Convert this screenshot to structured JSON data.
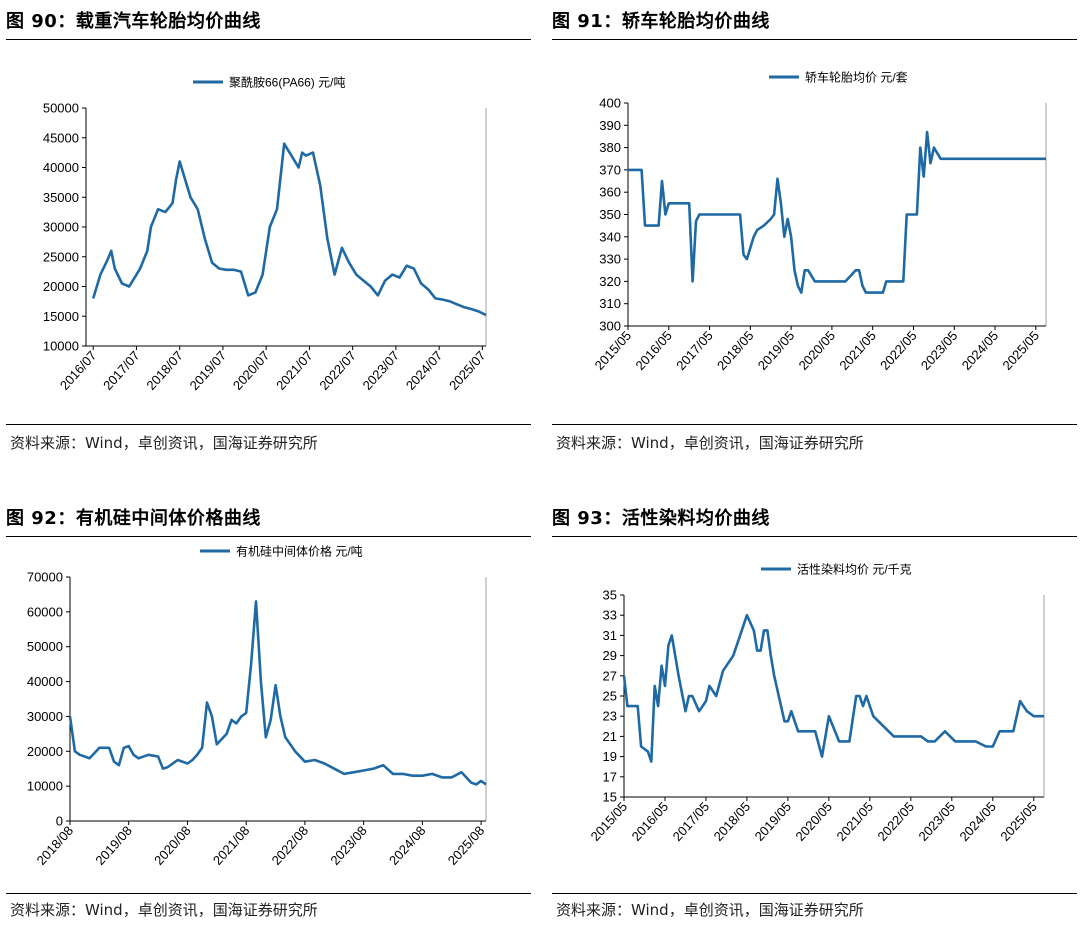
{
  "source_text": "资料来源：Wind，卓创资讯，国海证券研究所",
  "colors": {
    "line": "#1f6aa5",
    "axis": "#000000",
    "rule": "#000000"
  },
  "chart_data": [
    {
      "figure_title": "图 90：载重汽车轮胎均价曲线",
      "type": "line",
      "legend": "聚酰胺66(PA66) 元/吨",
      "ylim": [
        10000,
        50000
      ],
      "yticks": [
        10000,
        15000,
        20000,
        25000,
        30000,
        35000,
        40000,
        45000,
        50000
      ],
      "xlim": [
        "2016-05",
        "2025-08"
      ],
      "xticks": [
        "2016/07",
        "2017/07",
        "2018/07",
        "2019/07",
        "2020/07",
        "2021/07",
        "2022/07",
        "2023/07",
        "2024/07",
        "2025/07"
      ],
      "xtick_dates": [
        "2016-07",
        "2017-07",
        "2018-07",
        "2019-07",
        "2020-07",
        "2021-07",
        "2022-07",
        "2023-07",
        "2024-07",
        "2025-07"
      ],
      "series": [
        {
          "x": [
            "2016-07",
            "2016-09",
            "2016-11",
            "2016-12",
            "2017-01",
            "2017-03",
            "2017-05",
            "2017-07",
            "2017-08",
            "2017-10",
            "2017-11",
            "2018-01",
            "2018-03",
            "2018-05",
            "2018-06",
            "2018-07",
            "2018-08",
            "2018-10",
            "2018-12",
            "2019-02",
            "2019-04",
            "2019-06",
            "2019-08",
            "2019-10",
            "2019-12",
            "2020-02",
            "2020-04",
            "2020-06",
            "2020-08",
            "2020-10",
            "2020-12",
            "2021-01",
            "2021-02",
            "2021-04",
            "2021-05",
            "2021-06",
            "2021-08",
            "2021-10",
            "2021-12",
            "2022-02",
            "2022-04",
            "2022-06",
            "2022-08",
            "2022-10",
            "2022-12",
            "2023-02",
            "2023-04",
            "2023-06",
            "2023-08",
            "2023-10",
            "2023-12",
            "2024-02",
            "2024-04",
            "2024-06",
            "2024-08",
            "2024-10",
            "2024-12",
            "2025-02",
            "2025-04",
            "2025-06",
            "2025-08"
          ],
          "y": [
            18000,
            22000,
            24500,
            26000,
            23000,
            20500,
            20000,
            22000,
            23000,
            26000,
            30000,
            33000,
            32500,
            34000,
            38000,
            41000,
            39000,
            35000,
            33000,
            28000,
            24000,
            23000,
            22800,
            22800,
            22500,
            18500,
            19000,
            22000,
            30000,
            33000,
            44000,
            43000,
            42000,
            40000,
            42500,
            42000,
            42500,
            37000,
            28000,
            22000,
            26500,
            24000,
            22000,
            21000,
            20000,
            18500,
            21000,
            22000,
            21500,
            23500,
            23000,
            20500,
            19500,
            18000,
            17800,
            17500,
            17000,
            16500,
            16200,
            15800,
            15200
          ]
        }
      ]
    },
    {
      "figure_title": "图 91：轿车轮胎均价曲线",
      "type": "line",
      "legend": "轿车轮胎均价 元/套",
      "ylim": [
        300,
        400
      ],
      "yticks": [
        300,
        310,
        320,
        330,
        340,
        350,
        360,
        370,
        380,
        390,
        400
      ],
      "xlim": [
        "2015-05",
        "2025-08"
      ],
      "xticks": [
        "2015/05",
        "2016/05",
        "2017/05",
        "2018/05",
        "2019/05",
        "2020/05",
        "2021/05",
        "2022/05",
        "2023/05",
        "2024/05",
        "2025/05"
      ],
      "xtick_dates": [
        "2015-05",
        "2016-05",
        "2017-05",
        "2018-05",
        "2019-05",
        "2020-05",
        "2021-05",
        "2022-05",
        "2023-05",
        "2024-05",
        "2025-05"
      ],
      "series": [
        {
          "x": [
            "2015-05",
            "2015-09",
            "2015-10",
            "2016-02",
            "2016-03",
            "2016-04",
            "2016-05",
            "2016-08",
            "2016-11",
            "2016-12",
            "2017-01",
            "2017-02",
            "2017-03",
            "2017-06",
            "2017-09",
            "2017-12",
            "2018-02",
            "2018-03",
            "2018-04",
            "2018-05",
            "2018-06",
            "2018-07",
            "2018-09",
            "2018-11",
            "2018-12",
            "2019-01",
            "2019-02",
            "2019-03",
            "2019-04",
            "2019-05",
            "2019-06",
            "2019-07",
            "2019-08",
            "2019-09",
            "2019-10",
            "2019-12",
            "2020-03",
            "2020-06",
            "2020-09",
            "2020-12",
            "2021-01",
            "2021-02",
            "2021-03",
            "2021-06",
            "2021-08",
            "2021-09",
            "2021-12",
            "2022-02",
            "2022-03",
            "2022-04",
            "2022-06",
            "2022-07",
            "2022-08",
            "2022-09",
            "2022-10",
            "2022-11",
            "2023-01",
            "2023-06",
            "2024-01",
            "2024-06",
            "2025-01",
            "2025-08"
          ],
          "y": [
            370,
            370,
            345,
            345,
            365,
            350,
            355,
            355,
            355,
            320,
            347,
            350,
            350,
            350,
            350,
            350,
            350,
            332,
            330,
            335,
            340,
            343,
            345,
            348,
            350,
            366,
            355,
            340,
            348,
            340,
            325,
            318,
            315,
            325,
            325,
            320,
            320,
            320,
            320,
            325,
            325,
            318,
            315,
            315,
            315,
            320,
            320,
            320,
            350,
            350,
            350,
            380,
            367,
            387,
            373,
            380,
            375,
            375,
            375,
            375,
            375,
            375
          ]
        }
      ]
    },
    {
      "figure_title": "图 92：有机硅中间体价格曲线",
      "type": "line",
      "legend": "有机硅中间体价格 元/吨",
      "ylim": [
        0,
        70000
      ],
      "yticks": [
        0,
        10000,
        20000,
        30000,
        40000,
        50000,
        60000,
        70000
      ],
      "xlim": [
        "2018-08",
        "2025-09"
      ],
      "xticks": [
        "2018/08",
        "2019/08",
        "2020/08",
        "2021/08",
        "2022/08",
        "2023/08",
        "2024/08",
        "2025/08"
      ],
      "xtick_dates": [
        "2018-08",
        "2019-08",
        "2020-08",
        "2021-08",
        "2022-08",
        "2023-08",
        "2024-08",
        "2025-08"
      ],
      "series": [
        {
          "x": [
            "2018-08",
            "2018-09",
            "2018-10",
            "2018-12",
            "2019-02",
            "2019-04",
            "2019-05",
            "2019-06",
            "2019-07",
            "2019-08",
            "2019-09",
            "2019-10",
            "2019-12",
            "2020-02",
            "2020-03",
            "2020-04",
            "2020-06",
            "2020-08",
            "2020-09",
            "2020-10",
            "2020-11",
            "2020-12",
            "2021-01",
            "2021-02",
            "2021-04",
            "2021-05",
            "2021-06",
            "2021-07",
            "2021-08",
            "2021-09",
            "2021-10",
            "2021-11",
            "2021-12",
            "2022-01",
            "2022-02",
            "2022-03",
            "2022-04",
            "2022-06",
            "2022-08",
            "2022-10",
            "2022-12",
            "2023-02",
            "2023-04",
            "2023-06",
            "2023-08",
            "2023-10",
            "2023-12",
            "2024-02",
            "2024-04",
            "2024-06",
            "2024-08",
            "2024-10",
            "2024-12",
            "2025-02",
            "2025-04",
            "2025-06",
            "2025-07",
            "2025-08",
            "2025-09"
          ],
          "y": [
            30000,
            20000,
            19000,
            18000,
            21000,
            21000,
            17000,
            16000,
            21000,
            21500,
            19000,
            18000,
            19000,
            18500,
            15000,
            15500,
            17500,
            16500,
            17500,
            19000,
            21000,
            34000,
            30000,
            22000,
            25000,
            29000,
            28000,
            30000,
            31000,
            45000,
            63000,
            40000,
            24000,
            29000,
            39000,
            30000,
            24000,
            20000,
            17000,
            17500,
            16500,
            15000,
            13500,
            14000,
            14500,
            15000,
            16000,
            13500,
            13500,
            13000,
            13000,
            13500,
            12500,
            12500,
            14000,
            11000,
            10500,
            11500,
            10500
          ]
        }
      ]
    },
    {
      "figure_title": "图 93：活性染料均价曲线",
      "type": "line",
      "legend": "活性染料均价 元/千克",
      "ylim": [
        15,
        35
      ],
      "yticks": [
        15,
        17,
        19,
        21,
        23,
        25,
        27,
        29,
        31,
        33,
        35
      ],
      "xlim": [
        "2015-05",
        "2025-08"
      ],
      "xticks": [
        "2015/05",
        "2016/05",
        "2017/05",
        "2018/05",
        "2019/05",
        "2020/05",
        "2021/05",
        "2022/05",
        "2023/05",
        "2024/05",
        "2025/05"
      ],
      "xtick_dates": [
        "2015-05",
        "2016-05",
        "2017-05",
        "2018-05",
        "2019-05",
        "2020-05",
        "2021-05",
        "2022-05",
        "2023-05",
        "2024-05",
        "2025-05"
      ],
      "series": [
        {
          "x": [
            "2015-05",
            "2015-06",
            "2015-09",
            "2015-10",
            "2015-12",
            "2016-01",
            "2016-02",
            "2016-03",
            "2016-04",
            "2016-05",
            "2016-06",
            "2016-07",
            "2016-09",
            "2016-11",
            "2016-12",
            "2017-01",
            "2017-03",
            "2017-05",
            "2017-06",
            "2017-08",
            "2017-10",
            "2018-01",
            "2018-03",
            "2018-05",
            "2018-07",
            "2018-08",
            "2018-09",
            "2018-10",
            "2018-11",
            "2018-12",
            "2019-01",
            "2019-04",
            "2019-05",
            "2019-06",
            "2019-08",
            "2019-09",
            "2019-11",
            "2020-01",
            "2020-03",
            "2020-05",
            "2020-08",
            "2020-11",
            "2021-01",
            "2021-02",
            "2021-03",
            "2021-04",
            "2021-06",
            "2021-09",
            "2021-12",
            "2022-03",
            "2022-06",
            "2022-08",
            "2022-10",
            "2022-12",
            "2023-03",
            "2023-06",
            "2023-08",
            "2023-12",
            "2024-03",
            "2024-05",
            "2024-07",
            "2024-09",
            "2024-11",
            "2025-01",
            "2025-03",
            "2025-05",
            "2025-08"
          ],
          "y": [
            27,
            24,
            24,
            20,
            19.5,
            18.5,
            26,
            24,
            28,
            26,
            30,
            31,
            27,
            23.5,
            25,
            25,
            23.5,
            24.5,
            26,
            25,
            27.5,
            29,
            31,
            33,
            31.5,
            29.5,
            29.5,
            31.5,
            31.5,
            29,
            27,
            22.5,
            22.5,
            23.5,
            21.5,
            21.5,
            21.5,
            21.5,
            19,
            23,
            20.5,
            20.5,
            25,
            25,
            24,
            25,
            23,
            22,
            21,
            21,
            21,
            21,
            20.5,
            20.5,
            21.5,
            20.5,
            20.5,
            20.5,
            20,
            20,
            21.5,
            21.5,
            21.5,
            24.5,
            23.5,
            23,
            23
          ]
        }
      ]
    }
  ]
}
